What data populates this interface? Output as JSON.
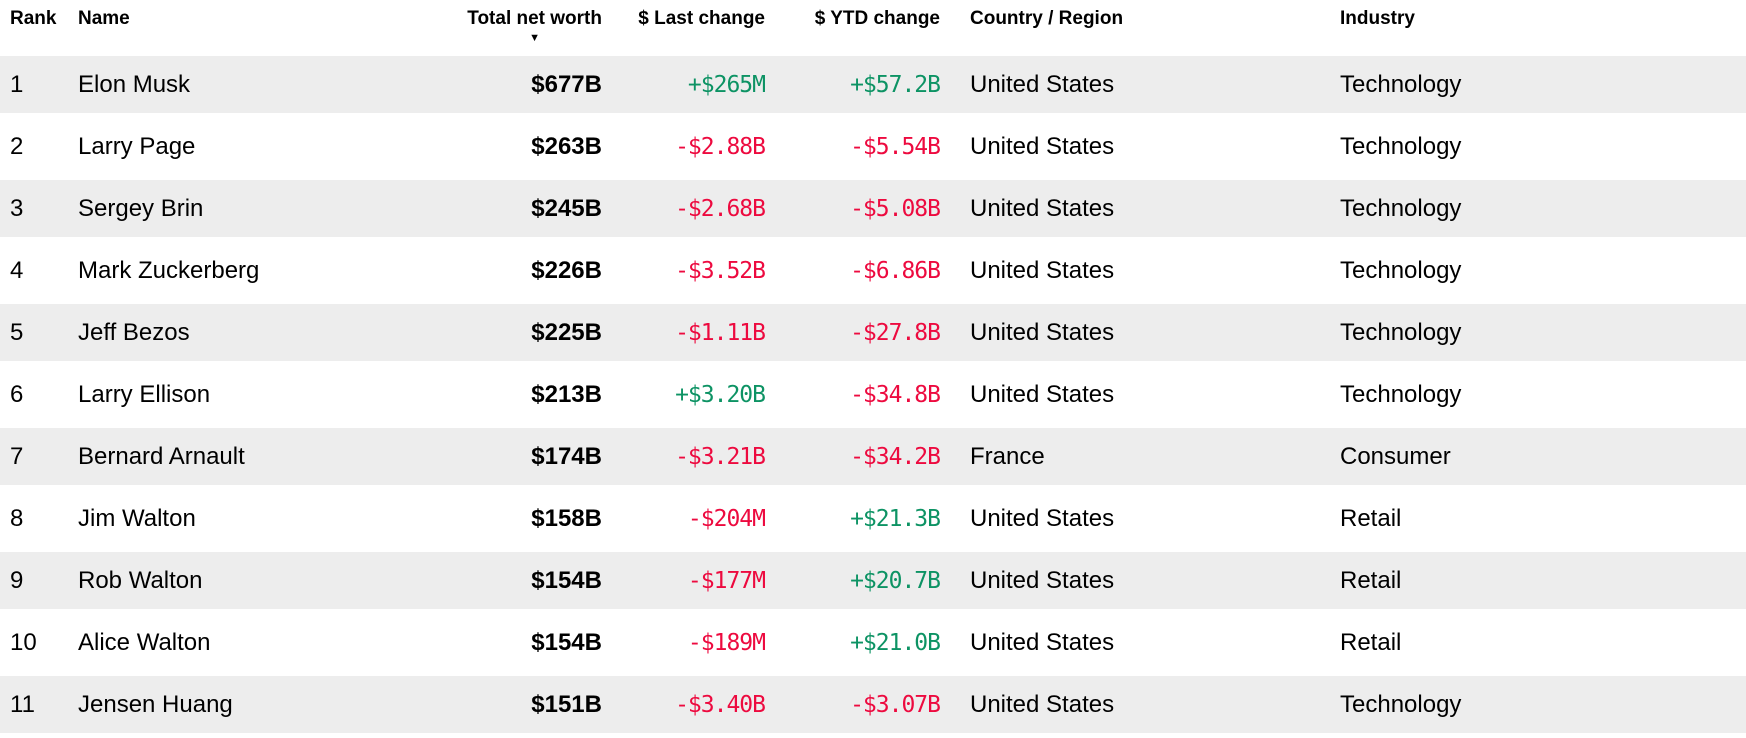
{
  "table": {
    "columns": {
      "rank": {
        "label": "Rank"
      },
      "name": {
        "label": "Name"
      },
      "net_worth": {
        "label": "Total net worth",
        "sort": "desc"
      },
      "last_change": {
        "label": "$ Last change"
      },
      "ytd_change": {
        "label": "$ YTD change"
      },
      "country": {
        "label": "Country / Region"
      },
      "industry": {
        "label": "Industry"
      }
    },
    "rows": [
      {
        "rank": "1",
        "name": "Elon Musk",
        "net_worth": "$677B",
        "last_change": "+$265M",
        "ytd_change": "+$57.2B",
        "country": "United States",
        "industry": "Technology"
      },
      {
        "rank": "2",
        "name": "Larry Page",
        "net_worth": "$263B",
        "last_change": "-$2.88B",
        "ytd_change": "-$5.54B",
        "country": "United States",
        "industry": "Technology"
      },
      {
        "rank": "3",
        "name": "Sergey Brin",
        "net_worth": "$245B",
        "last_change": "-$2.68B",
        "ytd_change": "-$5.08B",
        "country": "United States",
        "industry": "Technology"
      },
      {
        "rank": "4",
        "name": "Mark Zuckerberg",
        "net_worth": "$226B",
        "last_change": "-$3.52B",
        "ytd_change": "-$6.86B",
        "country": "United States",
        "industry": "Technology"
      },
      {
        "rank": "5",
        "name": "Jeff Bezos",
        "net_worth": "$225B",
        "last_change": "-$1.11B",
        "ytd_change": "-$27.8B",
        "country": "United States",
        "industry": "Technology"
      },
      {
        "rank": "6",
        "name": "Larry Ellison",
        "net_worth": "$213B",
        "last_change": "+$3.20B",
        "ytd_change": "-$34.8B",
        "country": "United States",
        "industry": "Technology"
      },
      {
        "rank": "7",
        "name": "Bernard Arnault",
        "net_worth": "$174B",
        "last_change": "-$3.21B",
        "ytd_change": "-$34.2B",
        "country": "France",
        "industry": "Consumer"
      },
      {
        "rank": "8",
        "name": "Jim Walton",
        "net_worth": "$158B",
        "last_change": "-$204M",
        "ytd_change": "+$21.3B",
        "country": "United States",
        "industry": "Retail"
      },
      {
        "rank": "9",
        "name": "Rob Walton",
        "net_worth": "$154B",
        "last_change": "-$177M",
        "ytd_change": "+$20.7B",
        "country": "United States",
        "industry": "Retail"
      },
      {
        "rank": "10",
        "name": "Alice Walton",
        "net_worth": "$154B",
        "last_change": "-$189M",
        "ytd_change": "+$21.0B",
        "country": "United States",
        "industry": "Retail"
      },
      {
        "rank": "11",
        "name": "Jensen Huang",
        "net_worth": "$151B",
        "last_change": "-$3.40B",
        "ytd_change": "-$3.07B",
        "country": "United States",
        "industry": "Technology"
      }
    ]
  },
  "icons": {
    "sort_desc": "▼"
  },
  "colors": {
    "positive": "#0d9364",
    "negative": "#ed0a3f",
    "row_stripe": "#ededed",
    "text": "#000000"
  }
}
